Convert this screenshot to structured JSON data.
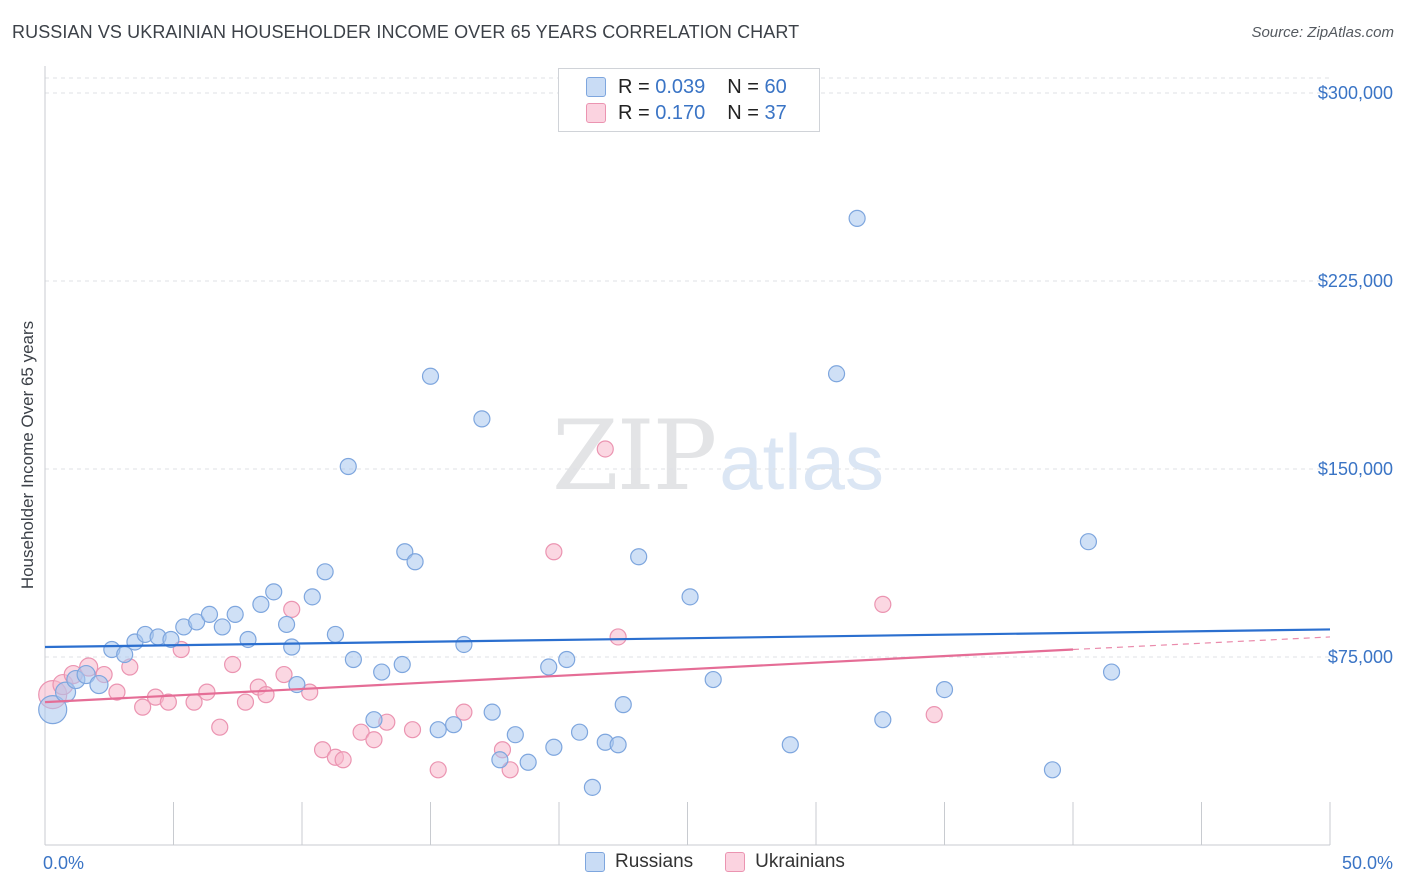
{
  "header": {
    "title": "RUSSIAN VS UKRAINIAN HOUSEHOLDER INCOME OVER 65 YEARS CORRELATION CHART",
    "source": "Source: ZipAtlas.com"
  },
  "watermark": {
    "zip": "ZIP",
    "atlas": "atlas"
  },
  "legend_top": {
    "rows": [
      {
        "r_label": "R =",
        "r_value": "0.039",
        "n_label": "N =",
        "n_value": "60",
        "color": "#a8c6ee"
      },
      {
        "r_label": "R =",
        "r_value": "0.170",
        "n_label": "N =",
        "n_value": "37",
        "color": "#f7b6cb"
      }
    ]
  },
  "legend_bottom": {
    "items": [
      {
        "label": "Russians",
        "color": "#a8c6ee"
      },
      {
        "label": "Ukrainians",
        "color": "#f7b6cb"
      }
    ]
  },
  "colors": {
    "blue_fill": "#a8c6ee",
    "blue_stroke": "#7ea6de",
    "blue_line": "#2b6fcf",
    "pink_fill": "#f7b6cb",
    "pink_stroke": "#eb94b1",
    "pink_line": "#e56d96",
    "tick_text": "#3a74c5",
    "grid": "#dfe1e5"
  },
  "chart_data": {
    "type": "scatter",
    "title": "RUSSIAN VS UKRAINIAN HOUSEHOLDER INCOME OVER 65 YEARS CORRELATION CHART",
    "xlabel": "",
    "ylabel": "Householder Income Over 65 years",
    "xlim": [
      0,
      50
    ],
    "ylim": [
      0,
      306000
    ],
    "x_tick_labels": [
      "0.0%",
      "50.0%"
    ],
    "y_ticks": [
      75000,
      150000,
      225000,
      300000
    ],
    "y_tick_labels": [
      "$75,000",
      "$150,000",
      "$225,000",
      "$300,000"
    ],
    "grid": true,
    "legend_position": "top-center",
    "series": [
      {
        "name": "Russians",
        "r": 0.039,
        "n": 60,
        "trend": [
          [
            0,
            79000
          ],
          [
            50,
            86000
          ]
        ],
        "points": [
          [
            0.3,
            54000,
            14
          ],
          [
            0.8,
            61000,
            10
          ],
          [
            1.2,
            66000,
            9
          ],
          [
            1.6,
            68000,
            9
          ],
          [
            2.1,
            64000,
            9
          ],
          [
            2.6,
            78000,
            8
          ],
          [
            3.1,
            76000,
            8
          ],
          [
            3.5,
            81000,
            8
          ],
          [
            3.9,
            84000,
            8
          ],
          [
            4.4,
            83000,
            8
          ],
          [
            4.9,
            82000,
            8
          ],
          [
            5.4,
            87000,
            8
          ],
          [
            5.9,
            89000,
            8
          ],
          [
            6.4,
            92000,
            8
          ],
          [
            6.9,
            87000,
            8
          ],
          [
            7.4,
            92000,
            8
          ],
          [
            7.9,
            82000,
            8
          ],
          [
            8.4,
            96000,
            8
          ],
          [
            8.9,
            101000,
            8
          ],
          [
            9.4,
            88000,
            8
          ],
          [
            9.6,
            79000,
            8
          ],
          [
            9.8,
            64000,
            8
          ],
          [
            10.4,
            99000,
            8
          ],
          [
            10.9,
            109000,
            8
          ],
          [
            11.3,
            84000,
            8
          ],
          [
            11.8,
            151000,
            8
          ],
          [
            12.0,
            74000,
            8
          ],
          [
            12.8,
            50000,
            8
          ],
          [
            13.1,
            69000,
            8
          ],
          [
            13.9,
            72000,
            8
          ],
          [
            14.0,
            117000,
            8
          ],
          [
            14.4,
            113000,
            8
          ],
          [
            15.0,
            187000,
            8
          ],
          [
            15.3,
            46000,
            8
          ],
          [
            15.9,
            48000,
            8
          ],
          [
            16.3,
            80000,
            8
          ],
          [
            17.0,
            170000,
            8
          ],
          [
            17.4,
            53000,
            8
          ],
          [
            17.7,
            34000,
            8
          ],
          [
            18.3,
            44000,
            8
          ],
          [
            18.8,
            33000,
            8
          ],
          [
            19.6,
            71000,
            8
          ],
          [
            19.8,
            39000,
            8
          ],
          [
            20.3,
            74000,
            8
          ],
          [
            20.8,
            45000,
            8
          ],
          [
            21.3,
            23000,
            8
          ],
          [
            21.8,
            41000,
            8
          ],
          [
            22.3,
            40000,
            8
          ],
          [
            22.5,
            56000,
            8
          ],
          [
            23.1,
            115000,
            8
          ],
          [
            25.1,
            99000,
            8
          ],
          [
            26.0,
            66000,
            8
          ],
          [
            29.0,
            40000,
            8
          ],
          [
            30.8,
            188000,
            8
          ],
          [
            31.6,
            250000,
            8
          ],
          [
            32.6,
            50000,
            8
          ],
          [
            35.0,
            62000,
            8
          ],
          [
            39.2,
            30000,
            8
          ],
          [
            40.6,
            121000,
            8
          ],
          [
            41.5,
            69000,
            8
          ]
        ]
      },
      {
        "name": "Ukrainians",
        "r": 0.17,
        "n": 37,
        "trend": [
          [
            0,
            57000
          ],
          [
            40,
            78000
          ]
        ],
        "trend_dashed": [
          [
            40,
            78000
          ],
          [
            50,
            83000
          ]
        ],
        "points": [
          [
            0.3,
            60000,
            14
          ],
          [
            0.7,
            64000,
            10
          ],
          [
            1.1,
            68000,
            9
          ],
          [
            1.7,
            71000,
            9
          ],
          [
            2.3,
            68000,
            8
          ],
          [
            2.8,
            61000,
            8
          ],
          [
            3.3,
            71000,
            8
          ],
          [
            3.8,
            55000,
            8
          ],
          [
            4.3,
            59000,
            8
          ],
          [
            4.8,
            57000,
            8
          ],
          [
            5.3,
            78000,
            8
          ],
          [
            5.8,
            57000,
            8
          ],
          [
            6.3,
            61000,
            8
          ],
          [
            6.8,
            47000,
            8
          ],
          [
            7.3,
            72000,
            8
          ],
          [
            7.8,
            57000,
            8
          ],
          [
            8.3,
            63000,
            8
          ],
          [
            8.6,
            60000,
            8
          ],
          [
            9.3,
            68000,
            8
          ],
          [
            9.6,
            94000,
            8
          ],
          [
            10.3,
            61000,
            8
          ],
          [
            10.8,
            38000,
            8
          ],
          [
            11.3,
            35000,
            8
          ],
          [
            11.6,
            34000,
            8
          ],
          [
            12.3,
            45000,
            8
          ],
          [
            12.8,
            42000,
            8
          ],
          [
            13.3,
            49000,
            8
          ],
          [
            14.3,
            46000,
            8
          ],
          [
            15.3,
            30000,
            8
          ],
          [
            16.3,
            53000,
            8
          ],
          [
            17.8,
            38000,
            8
          ],
          [
            18.1,
            30000,
            8
          ],
          [
            19.8,
            117000,
            8
          ],
          [
            21.8,
            158000,
            8
          ],
          [
            22.3,
            83000,
            8
          ],
          [
            32.6,
            96000,
            8
          ],
          [
            34.6,
            52000,
            8
          ]
        ]
      }
    ]
  }
}
